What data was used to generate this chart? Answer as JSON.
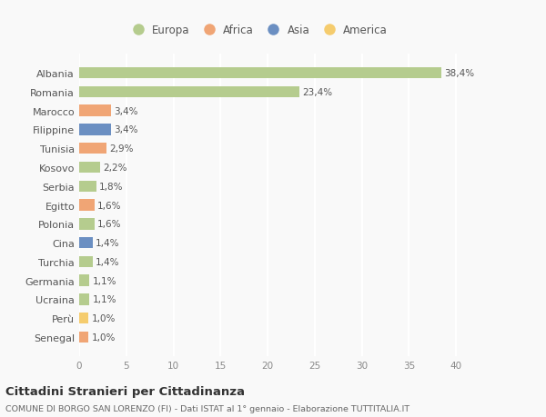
{
  "countries": [
    "Albania",
    "Romania",
    "Marocco",
    "Filippine",
    "Tunisia",
    "Kosovo",
    "Serbia",
    "Egitto",
    "Polonia",
    "Cina",
    "Turchia",
    "Germania",
    "Ucraina",
    "Perù",
    "Senegal"
  ],
  "values": [
    38.4,
    23.4,
    3.4,
    3.4,
    2.9,
    2.2,
    1.8,
    1.6,
    1.6,
    1.4,
    1.4,
    1.1,
    1.1,
    1.0,
    1.0
  ],
  "labels": [
    "38,4%",
    "23,4%",
    "3,4%",
    "3,4%",
    "2,9%",
    "2,2%",
    "1,8%",
    "1,6%",
    "1,6%",
    "1,4%",
    "1,4%",
    "1,1%",
    "1,1%",
    "1,0%",
    "1,0%"
  ],
  "colors": [
    "#b5cc8e",
    "#b5cc8e",
    "#f0a575",
    "#6b8fc2",
    "#f0a575",
    "#b5cc8e",
    "#b5cc8e",
    "#f0a575",
    "#b5cc8e",
    "#6b8fc2",
    "#b5cc8e",
    "#b5cc8e",
    "#b5cc8e",
    "#f5cc6e",
    "#f0a575"
  ],
  "continent_labels": [
    "Europa",
    "Africa",
    "Asia",
    "America"
  ],
  "continent_colors": [
    "#b5cc8e",
    "#f0a575",
    "#6b8fc2",
    "#f5cc6e"
  ],
  "title": "Cittadini Stranieri per Cittadinanza",
  "subtitle": "COMUNE DI BORGO SAN LORENZO (FI) - Dati ISTAT al 1° gennaio - Elaborazione TUTTITALIA.IT",
  "xlim": [
    0,
    42
  ],
  "xticks": [
    0,
    5,
    10,
    15,
    20,
    25,
    30,
    35,
    40
  ],
  "background_color": "#f9f9f9",
  "grid_color": "#ffffff",
  "bar_height": 0.6
}
